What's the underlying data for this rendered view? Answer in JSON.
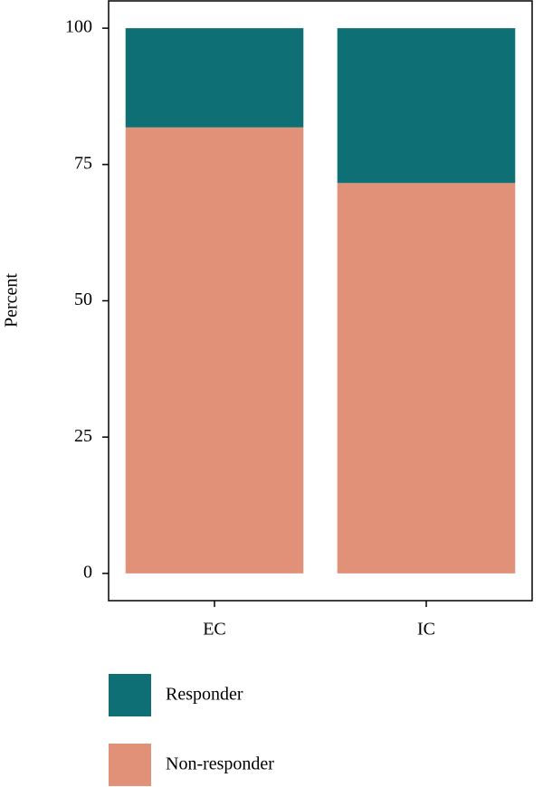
{
  "chart_data": {
    "type": "stacked-bar",
    "y_label": "Percent",
    "categories": [
      "EC",
      "IC"
    ],
    "series": [
      {
        "name": "Responder",
        "color": "#0e7074",
        "values": [
          18.2,
          28.4
        ]
      },
      {
        "name": "Non-responder",
        "color": "#e09178",
        "values": [
          81.8,
          71.6
        ]
      }
    ],
    "ylim": [
      -5,
      105
    ],
    "yticks": [
      0,
      25,
      50,
      75,
      100
    ]
  }
}
